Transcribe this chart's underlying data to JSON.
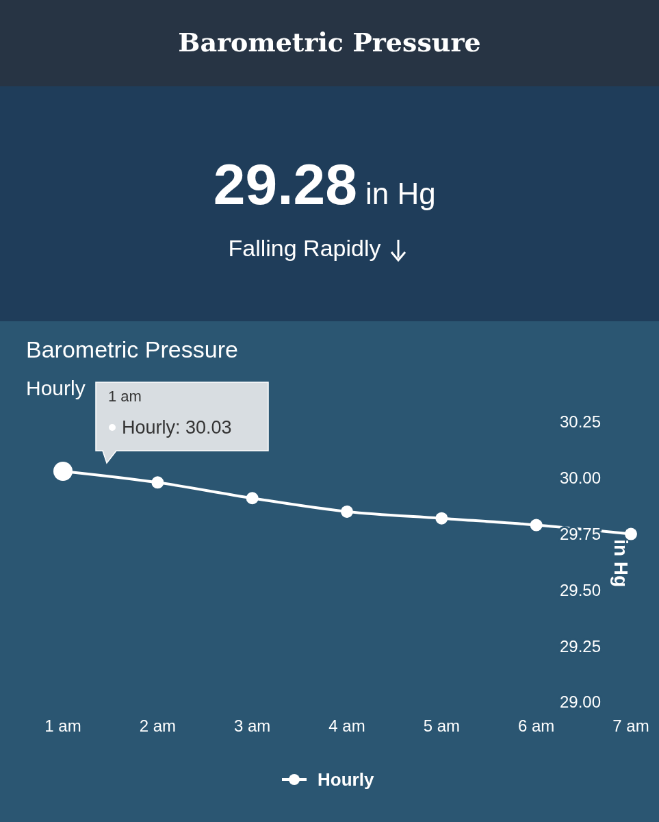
{
  "chart_data": {
    "type": "line",
    "title": "Barometric Pressure",
    "subtitle": "Hourly",
    "ylabel": "in Hg",
    "categories": [
      "1 am",
      "2 am",
      "3 am",
      "4 am",
      "5 am",
      "6 am",
      "7 am"
    ],
    "series": [
      {
        "name": "Hourly",
        "color": "#ffffff",
        "values": [
          30.03,
          29.98,
          29.91,
          29.85,
          29.82,
          29.79,
          29.75
        ]
      }
    ],
    "ylim": [
      29,
      30.25
    ],
    "yticks": [
      {
        "value": 29,
        "label": "29.00"
      },
      {
        "value": 29.25,
        "label": "29.25"
      },
      {
        "value": 29.5,
        "label": "29.50"
      },
      {
        "value": 29.75,
        "label": "29.75"
      },
      {
        "value": 30,
        "label": "30.00"
      },
      {
        "value": 30.25,
        "label": "30.25"
      }
    ],
    "grid": false,
    "legend": "bottom",
    "marker": "circle",
    "line_style": "solid",
    "annotations": [
      "Barometric Pressure",
      "29.28",
      "in Hg",
      "Falling Rapidly",
      "1 am",
      "Hourly: 30.03"
    ]
  }
}
